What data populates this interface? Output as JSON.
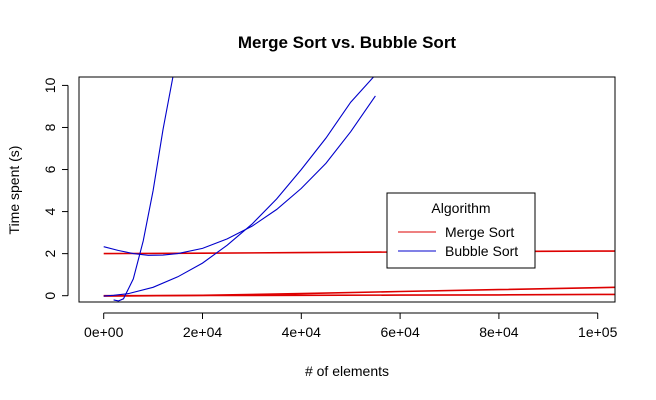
{
  "chart_data": {
    "type": "line",
    "title": "Merge Sort vs. Bubble Sort",
    "xlabel": "# of elements",
    "ylabel": "Time spent (s)",
    "xlim": [
      -5000,
      103500
    ],
    "ylim": [
      -0.3,
      10.4
    ],
    "x_ticks": [
      0,
      20000,
      40000,
      60000,
      80000,
      100000
    ],
    "x_tick_labels": [
      "0e+00",
      "2e+04",
      "4e+04",
      "6e+04",
      "8e+04",
      "1e+05"
    ],
    "y_ticks": [
      0,
      2,
      4,
      6,
      8,
      10
    ],
    "y_tick_labels": [
      "0",
      "2",
      "4",
      "6",
      "8",
      "10"
    ],
    "legend": {
      "title": "Algorithm",
      "position": "right",
      "entries": [
        {
          "name": "Merge Sort",
          "color": "#dd0000"
        },
        {
          "name": "Bubble Sort",
          "color": "#0000cc"
        }
      ]
    },
    "series": [
      {
        "name": "Merge Sort",
        "color": "#dd0000",
        "x": [
          0,
          20000,
          40000,
          60000,
          80000,
          100000,
          103500
        ],
        "y": [
          2.0,
          2.02,
          2.05,
          2.08,
          2.1,
          2.12,
          2.12
        ]
      },
      {
        "name": "Merge Sort",
        "color": "#dd0000",
        "x": [
          0,
          20000,
          40000,
          60000,
          80000,
          100000,
          103500
        ],
        "y": [
          -0.02,
          0.02,
          0.1,
          0.2,
          0.29,
          0.38,
          0.4
        ]
      },
      {
        "name": "Merge Sort",
        "color": "#dd0000",
        "x": [
          0,
          20000,
          40000,
          60000,
          80000,
          100000,
          103500
        ],
        "y": [
          0.0,
          0.01,
          0.02,
          0.03,
          0.04,
          0.06,
          0.06
        ]
      },
      {
        "name": "Bubble Sort",
        "color": "#0000cc",
        "x": [
          0,
          3000,
          6000,
          9000,
          12000,
          15000,
          20000,
          25000,
          30000,
          35000,
          40000,
          45000,
          50000,
          55000
        ],
        "y": [
          2.33,
          2.15,
          2.0,
          1.92,
          1.93,
          2.0,
          2.25,
          2.7,
          3.3,
          4.1,
          5.1,
          6.3,
          7.8,
          9.5
        ]
      },
      {
        "name": "Bubble Sort",
        "color": "#0000cc",
        "x": [
          0,
          2000,
          5000,
          10000,
          15000,
          20000,
          25000,
          30000,
          35000,
          40000,
          45000,
          50000,
          55000,
          57000
        ],
        "y": [
          -0.02,
          0.02,
          0.1,
          0.4,
          0.9,
          1.55,
          2.4,
          3.4,
          4.6,
          6.0,
          7.5,
          9.2,
          10.5,
          10.4
        ]
      },
      {
        "name": "Bubble Sort",
        "color": "#0000cc",
        "x": [
          2000,
          3000,
          4000,
          6000,
          8000,
          10000,
          12000,
          14000
        ],
        "y": [
          -0.2,
          -0.25,
          -0.15,
          0.8,
          2.6,
          5.0,
          7.9,
          10.4
        ]
      }
    ]
  }
}
